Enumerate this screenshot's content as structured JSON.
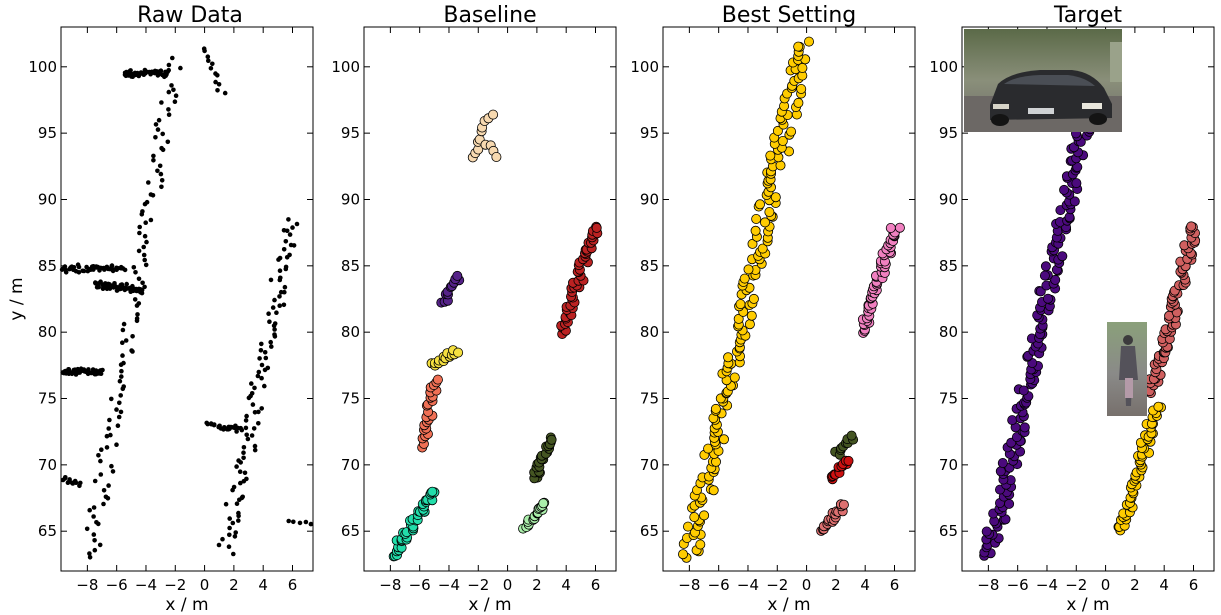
{
  "figure": {
    "ylabel": "y / m",
    "panel_titles": [
      "Raw Data",
      "Baseline",
      "Best Setting",
      "Target"
    ]
  },
  "chart_data": [
    {
      "type": "scatter",
      "title": "Raw Data",
      "xlabel": "x / m",
      "ylabel": "y / m",
      "xlim": [
        -9.8,
        7.4
      ],
      "ylim": [
        62,
        103
      ],
      "xticks": [
        -8,
        -6,
        -4,
        -2,
        0,
        2,
        4,
        6
      ],
      "yticks": [
        65,
        70,
        75,
        80,
        85,
        90,
        95,
        100
      ],
      "grid": false,
      "series": [
        {
          "color": "#000000",
          "segments": [
            [
              -7.8,
              63.0,
              -2.0,
              100.5,
              110
            ],
            [
              1.5,
              63.5,
              6.0,
              88.5,
              100
            ],
            [
              -9.7,
              84.8,
              -5.5,
              84.8,
              45
            ],
            [
              -7.5,
              83.6,
              -4.2,
              83.2,
              60
            ],
            [
              -9.7,
              77.0,
              -7.0,
              77.0,
              45
            ],
            [
              0.2,
              73.0,
              2.5,
              72.7,
              25
            ],
            [
              -5.5,
              99.5,
              -2.5,
              99.5,
              45
            ],
            [
              -9.7,
              69.0,
              -8.5,
              68.5,
              12
            ],
            [
              0.0,
              101.5,
              1.2,
              98.0,
              12
            ],
            [
              5.8,
              65.7,
              7.2,
              65.6,
              5
            ]
          ]
        }
      ]
    },
    {
      "type": "scatter",
      "title": "Baseline",
      "xlabel": "x / m",
      "xlim": [
        -9.8,
        7.4
      ],
      "ylim": [
        62,
        103
      ],
      "xticks": [
        -8,
        -6,
        -4,
        -2,
        0,
        2,
        4,
        6
      ],
      "yticks": [
        65,
        70,
        75,
        80,
        85,
        90,
        95,
        100
      ],
      "grid": false,
      "series": [
        {
          "color": "#f7d9b0",
          "segments": [
            [
              -2.4,
              93.0,
              -1.2,
              96.5,
              10
            ],
            [
              -1.5,
              94.2,
              -0.8,
              93.4,
              4
            ]
          ]
        },
        {
          "color": "#552288",
          "segments": [
            [
              -4.5,
              82.2,
              -3.3,
              84.2,
              12
            ]
          ]
        },
        {
          "color": "#f5e040",
          "segments": [
            [
              -5.1,
              77.5,
              -3.5,
              78.6,
              14
            ]
          ]
        },
        {
          "color": "#f07055",
          "segments": [
            [
              -5.8,
              71.5,
              -4.9,
              76.4,
              24
            ]
          ]
        },
        {
          "color": "#bb2222",
          "segments": [
            [
              3.8,
              80.0,
              5.9,
              88.0,
              50
            ]
          ]
        },
        {
          "color": "#445522",
          "segments": [
            [
              1.8,
              69.0,
              3.0,
              72.0,
              24
            ]
          ]
        },
        {
          "color": "#aaeeaa",
          "segments": [
            [
              1.2,
              65.2,
              2.6,
              67.2,
              20
            ]
          ]
        },
        {
          "color": "#22ddaa",
          "segments": [
            [
              -7.8,
              63.2,
              -5.1,
              68.0,
              40
            ]
          ]
        }
      ]
    },
    {
      "type": "scatter",
      "title": "Best Setting",
      "xlabel": "x / m",
      "xlim": [
        -9.8,
        7.4
      ],
      "ylim": [
        62,
        103
      ],
      "xticks": [
        -8,
        -6,
        -4,
        -2,
        0,
        2,
        4,
        6
      ],
      "yticks": [
        65,
        70,
        75,
        80,
        85,
        90,
        95,
        100
      ],
      "grid": false,
      "series": [
        {
          "color": "#ffcc00",
          "segments": [
            [
              -8.0,
              63.0,
              -0.2,
              101.8,
              175
            ]
          ]
        },
        {
          "color": "#f080c0",
          "segments": [
            [
              3.8,
              80.0,
              6.1,
              88.0,
              55
            ]
          ]
        },
        {
          "color": "#445522",
          "segments": [
            [
              2.0,
              70.8,
              3.2,
              72.2,
              10
            ]
          ]
        },
        {
          "color": "#cc1111",
          "segments": [
            [
              1.8,
              68.8,
              2.8,
              70.4,
              14
            ]
          ]
        },
        {
          "color": "#dd7070",
          "segments": [
            [
              1.0,
              65.0,
              2.5,
              67.0,
              20
            ]
          ]
        }
      ]
    },
    {
      "type": "scatter",
      "title": "Target",
      "xlabel": "x / m",
      "xlim": [
        -9.8,
        7.4
      ],
      "ylim": [
        62,
        103
      ],
      "xticks": [
        -8,
        -6,
        -4,
        -2,
        0,
        2,
        4,
        6
      ],
      "yticks": [
        65,
        70,
        75,
        80,
        85,
        90,
        95,
        100
      ],
      "grid": false,
      "series": [
        {
          "color": "#4b0a7d",
          "segments": [
            [
              -8.0,
              63.0,
              -0.2,
              101.8,
              190
            ]
          ]
        },
        {
          "color": "#d06060",
          "segments": [
            [
              3.2,
              75.5,
              6.1,
              88.0,
              80
            ]
          ]
        },
        {
          "color": "#ffcc00",
          "segments": [
            [
              1.0,
              65.0,
              3.5,
              74.5,
              55
            ]
          ]
        }
      ]
    }
  ]
}
